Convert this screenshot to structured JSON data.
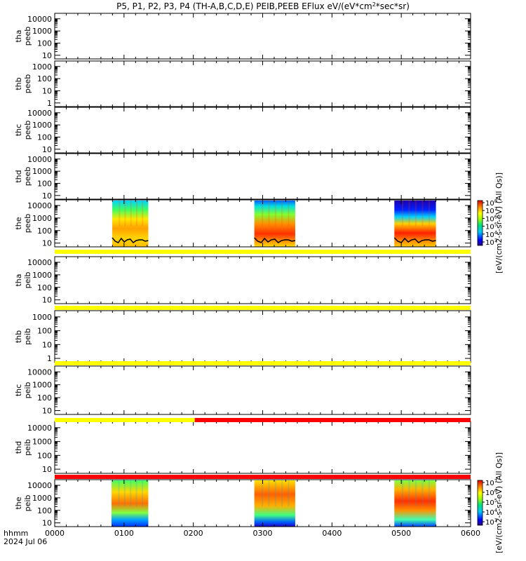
{
  "chart_data": {
    "type": "heatmap",
    "title_parts": {
      "main": "P5, P1, P2, P3, P4 (TH-A,B,C,D,E) PEIB,PEEB EFlux eV/(eV*cm",
      "sup": "2",
      "tail": "*sec*sr)"
    },
    "x_axis": {
      "ticks": [
        "0000",
        "0100",
        "0200",
        "0300",
        "0400",
        "0500",
        "0600"
      ],
      "label_line1": "hhmm",
      "label_line2": "2024 Jul 06",
      "range_hours": [
        0,
        6
      ]
    },
    "panels": [
      {
        "probe": "tha",
        "kind": "peeb",
        "ticks": [
          "10000",
          "1000",
          "100",
          "10"
        ]
      },
      {
        "probe": "thb",
        "kind": "peeb",
        "ticks": [
          "1000",
          "100",
          "10",
          "1"
        ]
      },
      {
        "probe": "thc",
        "kind": "peeb",
        "ticks": [
          "10000",
          "1000",
          "100",
          "10"
        ]
      },
      {
        "probe": "thd",
        "kind": "peeb",
        "ticks": [
          "10000",
          "1000",
          "100",
          "10"
        ]
      },
      {
        "probe": "the",
        "kind": "peeb",
        "ticks": [
          "10000",
          "1000",
          "100",
          "10"
        ],
        "data_intervals_hours": [
          [
            0.83,
            1.35
          ],
          [
            2.88,
            3.47
          ],
          [
            4.9,
            5.5
          ]
        ]
      },
      {
        "probe": "tha",
        "kind": "peib",
        "ticks": [
          "10000",
          "1000",
          "100",
          "10"
        ]
      },
      {
        "probe": "thb",
        "kind": "peib",
        "ticks": [
          "1000",
          "100",
          "10",
          "1"
        ]
      },
      {
        "probe": "thc",
        "kind": "peib",
        "ticks": [
          "10000",
          "1000",
          "100",
          "10"
        ]
      },
      {
        "probe": "thd",
        "kind": "peib",
        "ticks": [
          "10000",
          "1000",
          "100",
          "10"
        ]
      },
      {
        "probe": "the",
        "kind": "peib",
        "ticks": [
          "10000",
          "1000",
          "100",
          "10"
        ],
        "data_intervals_hours": [
          [
            0.82,
            1.35
          ],
          [
            2.88,
            3.47
          ],
          [
            4.9,
            5.5
          ]
        ]
      }
    ],
    "status_bars": [
      {
        "after_panel": 5,
        "segments": [
          {
            "from": 0,
            "to": 6,
            "color": "#ffff00"
          }
        ]
      },
      {
        "after_panel": 6,
        "segments": [
          {
            "from": 0,
            "to": 6,
            "color": "#ffff00"
          }
        ]
      },
      {
        "after_panel": 7,
        "segments": [
          {
            "from": 0,
            "to": 6,
            "color": "#ffff00"
          }
        ]
      },
      {
        "after_panel": 8,
        "segments": [
          {
            "from": 0,
            "to": 2.02,
            "color": "#ffff00"
          },
          {
            "from": 2.02,
            "to": 6,
            "color": "#ff0000"
          }
        ]
      },
      {
        "after_panel": 9,
        "segments": [
          {
            "from": 0,
            "to": 6,
            "color": "#ff0000"
          }
        ]
      }
    ],
    "colorbars": [
      {
        "for": "peeb",
        "label": "[eV/(cm2-s-sr-eV) (All Qs)]",
        "ticks": [
          {
            "base": "10",
            "exp": "8"
          },
          {
            "base": "10",
            "exp": "7"
          },
          {
            "base": "10",
            "exp": "6"
          },
          {
            "base": "10",
            "exp": "5"
          },
          {
            "base": "10",
            "exp": "4"
          },
          {
            "base": "10",
            "exp": "3"
          }
        ]
      },
      {
        "for": "peib",
        "label": "[eV/(cm2-s-sr-eV) (All Qs)]",
        "ticks": [
          {
            "base": "10",
            "exp": "7"
          },
          {
            "base": "10",
            "exp": "6"
          },
          {
            "base": "10",
            "exp": "5"
          },
          {
            "base": "10",
            "exp": "4"
          },
          {
            "base": "10",
            "exp": "3"
          }
        ]
      }
    ],
    "colors": {
      "status_good": "#ffff00",
      "status_bad": "#ff0000"
    }
  }
}
